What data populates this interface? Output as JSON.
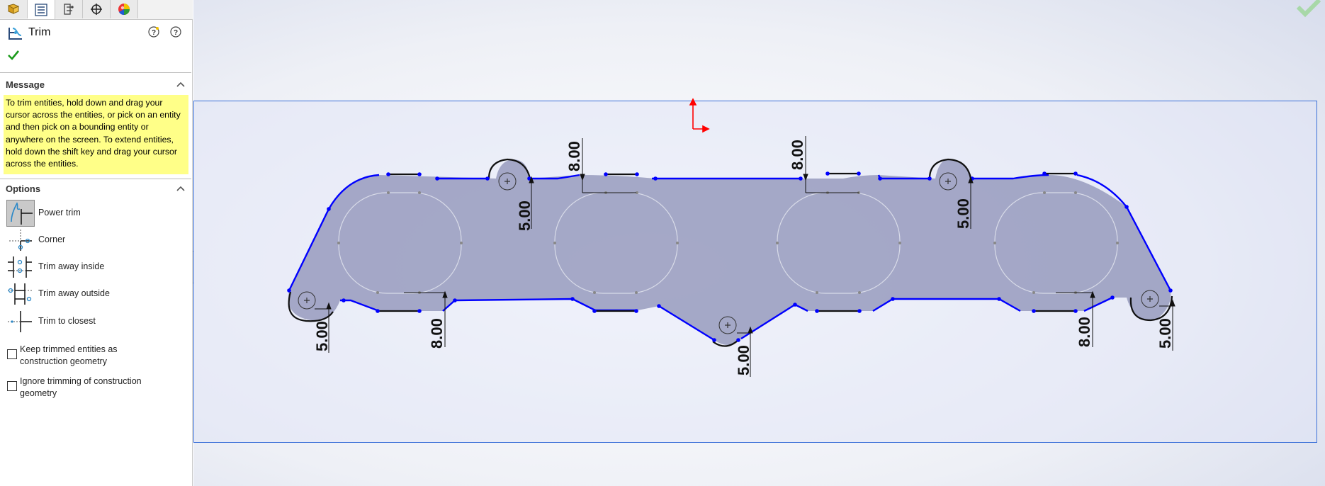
{
  "panel": {
    "tabs": [
      {
        "name": "feature-manager-tab",
        "icon": "feature-tree-icon"
      },
      {
        "name": "property-manager-tab",
        "icon": "property-sheet-icon"
      },
      {
        "name": "configuration-manager-tab",
        "icon": "configuration-icon"
      },
      {
        "name": "dimxpert-manager-tab",
        "icon": "crosshair-icon"
      },
      {
        "name": "display-manager-tab",
        "icon": "appearance-sphere-icon"
      }
    ],
    "title": "Trim",
    "message_header": "Message",
    "message_text": "To trim entities, hold down and drag your cursor across the entities, or pick on an entity and then pick on a bounding entity or anywhere on the screen.  To extend entities, hold down the shift key and drag your cursor across the entities.",
    "options_header": "Options",
    "options": [
      {
        "label": "Power trim",
        "icon": "power-trim-icon",
        "active": true
      },
      {
        "label": "Corner",
        "icon": "corner-trim-icon",
        "active": false
      },
      {
        "label": "Trim away inside",
        "icon": "trim-inside-icon",
        "active": false
      },
      {
        "label": "Trim away outside",
        "icon": "trim-outside-icon",
        "active": false
      },
      {
        "label": "Trim to closest",
        "icon": "trim-closest-icon",
        "active": false
      }
    ],
    "checkboxes": [
      {
        "label": "Keep trimmed entities as construction geometry",
        "checked": false
      },
      {
        "label": "Ignore trimming of construction geometry",
        "checked": false
      }
    ]
  },
  "sketch": {
    "dimensions": {
      "d1": "8.00",
      "d2": "8.00",
      "d3": "5.00",
      "d4": "5.00",
      "d5": "5.00",
      "d6": "8.00",
      "d7": "5.00",
      "d8": "8.00",
      "d9": "5.00"
    }
  },
  "colors": {
    "profile": "#0000ff",
    "selection_box": "#3a6fd8",
    "message_bg": "#ffff88",
    "origin": "#ff0000"
  }
}
